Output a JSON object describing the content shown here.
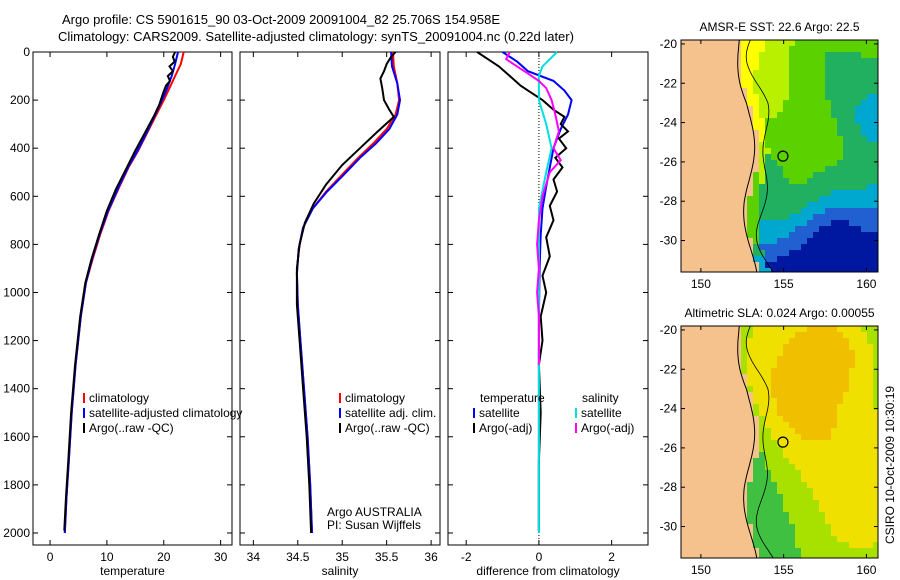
{
  "header": {
    "line1": "Argo profile: CS 5901615_90 03-Oct-2009 20091004_82 25.706S 154.958E",
    "line2": "Climatology: CARS2009. Satellite-adjusted climatology: synTS_20091004.nc (0.22d later)"
  },
  "credit": "CSIRO 10-Oct-2009 10:30:19",
  "chart_data": [
    {
      "type": "line",
      "panel": "temperature",
      "xlabel": "temperature",
      "ylabel": "",
      "xlim": [
        -3,
        32
      ],
      "ylim": [
        2050,
        0
      ],
      "y_reversed": true,
      "xticks": [
        0,
        10,
        20,
        30
      ],
      "yticks": [
        0,
        200,
        400,
        600,
        800,
        1000,
        1200,
        1400,
        1600,
        1800,
        2000
      ],
      "legend_position": "lower-right",
      "series": [
        {
          "name": "climatology",
          "color": "#ff0000",
          "points": [
            [
              23.5,
              0
            ],
            [
              23.0,
              50
            ],
            [
              22.0,
              100
            ],
            [
              21.0,
              150
            ],
            [
              20.0,
              200
            ],
            [
              18.5,
              270
            ],
            [
              17.0,
              340
            ],
            [
              15.5,
              410
            ],
            [
              13.8,
              480
            ],
            [
              12.0,
              570
            ],
            [
              10.3,
              660
            ],
            [
              8.8,
              760
            ],
            [
              7.5,
              860
            ],
            [
              6.3,
              960
            ],
            [
              5.4,
              1100
            ],
            [
              4.5,
              1300
            ],
            [
              3.8,
              1500
            ],
            [
              3.3,
              1700
            ],
            [
              2.9,
              1850
            ],
            [
              2.6,
              2000
            ]
          ]
        },
        {
          "name": "satellite-adjusted climatology",
          "color": "#0000ff",
          "points": [
            [
              22.5,
              0
            ],
            [
              22.0,
              50
            ],
            [
              21.4,
              100
            ],
            [
              20.6,
              150
            ],
            [
              19.7,
              200
            ],
            [
              18.3,
              270
            ],
            [
              16.9,
              340
            ],
            [
              15.4,
              410
            ],
            [
              13.7,
              480
            ],
            [
              11.9,
              570
            ],
            [
              10.2,
              660
            ],
            [
              8.7,
              760
            ],
            [
              7.4,
              860
            ],
            [
              6.3,
              960
            ],
            [
              5.4,
              1100
            ],
            [
              4.5,
              1300
            ],
            [
              3.8,
              1500
            ],
            [
              3.3,
              1700
            ],
            [
              2.9,
              1850
            ],
            [
              2.6,
              2000
            ]
          ]
        },
        {
          "name": "Argo(..raw -QC)",
          "color": "#000000",
          "points": [
            [
              22.0,
              0
            ],
            [
              21.6,
              20
            ],
            [
              21.9,
              40
            ],
            [
              21.0,
              60
            ],
            [
              21.6,
              80
            ],
            [
              20.7,
              100
            ],
            [
              21.1,
              120
            ],
            [
              20.4,
              140
            ],
            [
              19.9,
              170
            ],
            [
              19.2,
              220
            ],
            [
              18.2,
              270
            ],
            [
              16.6,
              340
            ],
            [
              15.0,
              410
            ],
            [
              13.3,
              490
            ],
            [
              11.6,
              570
            ],
            [
              10.0,
              660
            ],
            [
              8.6,
              760
            ],
            [
              7.3,
              860
            ],
            [
              6.2,
              960
            ],
            [
              5.3,
              1100
            ],
            [
              4.4,
              1300
            ],
            [
              3.7,
              1500
            ],
            [
              3.2,
              1700
            ],
            [
              2.8,
              1850
            ],
            [
              2.5,
              1990
            ]
          ]
        }
      ]
    },
    {
      "type": "line",
      "panel": "salinity",
      "xlabel": "salinity",
      "ylabel": "",
      "xlim": [
        33.85,
        36.1
      ],
      "ylim": [
        2050,
        0
      ],
      "y_reversed": true,
      "xticks": [
        34,
        34.5,
        35,
        35.5,
        36
      ],
      "legend_position": "lower-right",
      "annotation": [
        "Argo AUSTRALIA",
        "PI: Susan Wijffels"
      ],
      "series": [
        {
          "name": "climatology",
          "color": "#ff0000",
          "points": [
            [
              35.57,
              0
            ],
            [
              35.58,
              60
            ],
            [
              35.62,
              130
            ],
            [
              35.64,
              200
            ],
            [
              35.6,
              260
            ],
            [
              35.5,
              320
            ],
            [
              35.35,
              380
            ],
            [
              35.18,
              440
            ],
            [
              35.0,
              510
            ],
            [
              34.82,
              580
            ],
            [
              34.67,
              650
            ],
            [
              34.56,
              730
            ],
            [
              34.51,
              820
            ],
            [
              34.49,
              920
            ],
            [
              34.5,
              1050
            ],
            [
              34.53,
              1200
            ],
            [
              34.57,
              1400
            ],
            [
              34.61,
              1600
            ],
            [
              34.64,
              1800
            ],
            [
              34.66,
              2000
            ]
          ]
        },
        {
          "name": "satellite adj. clim.",
          "color": "#0000ff",
          "points": [
            [
              35.55,
              0
            ],
            [
              35.56,
              60
            ],
            [
              35.62,
              130
            ],
            [
              35.65,
              200
            ],
            [
              35.62,
              260
            ],
            [
              35.53,
              320
            ],
            [
              35.38,
              380
            ],
            [
              35.2,
              440
            ],
            [
              35.02,
              510
            ],
            [
              34.83,
              580
            ],
            [
              34.67,
              650
            ],
            [
              34.56,
              730
            ],
            [
              34.51,
              820
            ],
            [
              34.49,
              920
            ],
            [
              34.5,
              1050
            ],
            [
              34.53,
              1200
            ],
            [
              34.57,
              1400
            ],
            [
              34.61,
              1600
            ],
            [
              34.64,
              1800
            ],
            [
              34.66,
              2000
            ]
          ]
        },
        {
          "name": "Argo(..raw -QC)",
          "color": "#000000",
          "points": [
            [
              35.6,
              0
            ],
            [
              35.55,
              20
            ],
            [
              35.5,
              50
            ],
            [
              35.47,
              80
            ],
            [
              35.43,
              110
            ],
            [
              35.45,
              150
            ],
            [
              35.47,
              200
            ],
            [
              35.53,
              240
            ],
            [
              35.58,
              270
            ],
            [
              35.4,
              330
            ],
            [
              35.2,
              400
            ],
            [
              35.0,
              470
            ],
            [
              34.82,
              550
            ],
            [
              34.68,
              630
            ],
            [
              34.58,
              710
            ],
            [
              34.52,
              800
            ],
            [
              34.49,
              900
            ],
            [
              34.49,
              1050
            ],
            [
              34.52,
              1200
            ],
            [
              34.56,
              1400
            ],
            [
              34.6,
              1600
            ],
            [
              34.63,
              1800
            ],
            [
              34.65,
              2000
            ]
          ]
        }
      ]
    },
    {
      "type": "line",
      "panel": "difference",
      "xlabel": "difference from climatology",
      "ylabel": "",
      "xlim": [
        -2.5,
        3.0
      ],
      "ylim": [
        2050,
        0
      ],
      "y_reversed": true,
      "xticks": [
        -2,
        0,
        2
      ],
      "legend_left_header": "temperature",
      "legend_right_header": "salinity",
      "legend_position": "lower-center",
      "series": [
        {
          "name": "satellite",
          "group": "temperature",
          "color": "#0000ff",
          "points": [
            [
              -1.0,
              0
            ],
            [
              -0.6,
              40
            ],
            [
              -0.3,
              80
            ],
            [
              0.4,
              120
            ],
            [
              0.7,
              160
            ],
            [
              0.9,
              200
            ],
            [
              0.8,
              260
            ],
            [
              0.6,
              320
            ],
            [
              0.4,
              400
            ],
            [
              0.3,
              480
            ],
            [
              0.2,
              560
            ],
            [
              0.1,
              650
            ],
            [
              0.05,
              760
            ],
            [
              0.02,
              900
            ],
            [
              0.0,
              1100
            ],
            [
              0.0,
              1400
            ],
            [
              0.0,
              1700
            ],
            [
              0.0,
              2000
            ]
          ]
        },
        {
          "name": "Argo(-adj)",
          "group": "temperature",
          "color": "#000000",
          "points": [
            [
              -1.7,
              0
            ],
            [
              -1.4,
              30
            ],
            [
              -1.1,
              60
            ],
            [
              -0.8,
              100
            ],
            [
              -0.5,
              140
            ],
            [
              -0.2,
              170
            ],
            [
              0.1,
              200
            ],
            [
              0.4,
              240
            ],
            [
              0.7,
              270
            ],
            [
              0.6,
              300
            ],
            [
              0.8,
              330
            ],
            [
              0.55,
              360
            ],
            [
              0.75,
              400
            ],
            [
              0.45,
              440
            ],
            [
              0.65,
              480
            ],
            [
              0.4,
              530
            ],
            [
              0.5,
              580
            ],
            [
              0.3,
              640
            ],
            [
              0.4,
              700
            ],
            [
              0.2,
              770
            ],
            [
              0.3,
              850
            ],
            [
              0.1,
              930
            ],
            [
              0.2,
              1000
            ],
            [
              0.05,
              1100
            ],
            [
              0.1,
              1200
            ],
            [
              0.0,
              1300
            ],
            [
              0.05,
              1500
            ],
            [
              0.0,
              1700
            ],
            [
              0.0,
              1850
            ],
            [
              0.0,
              1990
            ]
          ]
        },
        {
          "name": "satellite",
          "group": "salinity",
          "color": "#00e0e0",
          "points": [
            [
              0.5,
              0
            ],
            [
              0.3,
              30
            ],
            [
              0.1,
              60
            ],
            [
              0.0,
              100
            ],
            [
              0.0,
              200
            ],
            [
              0.2,
              300
            ],
            [
              0.35,
              400
            ],
            [
              0.2,
              500
            ],
            [
              0.0,
              650
            ],
            [
              0.0,
              900
            ],
            [
              0.0,
              1200
            ],
            [
              0.0,
              1600
            ],
            [
              0.0,
              2000
            ]
          ]
        },
        {
          "name": "Argo(-adj)",
          "group": "salinity",
          "color": "#ff00ff",
          "points": [
            [
              -0.8,
              0
            ],
            [
              -0.9,
              30
            ],
            [
              -0.6,
              60
            ],
            [
              -0.3,
              90
            ],
            [
              0.0,
              120
            ],
            [
              0.2,
              150
            ],
            [
              0.35,
              200
            ],
            [
              0.45,
              260
            ],
            [
              0.55,
              330
            ],
            [
              0.4,
              400
            ],
            [
              0.6,
              450
            ],
            [
              0.3,
              500
            ],
            [
              0.1,
              600
            ],
            [
              0.0,
              700
            ],
            [
              -0.05,
              800
            ],
            [
              0.0,
              900
            ],
            [
              -0.05,
              1000
            ],
            [
              0.0,
              1100
            ],
            [
              0.0,
              1300
            ]
          ]
        }
      ]
    },
    {
      "type": "heatmap",
      "panel": "map-sst",
      "title": "AMSR-E SST: 22.6  Argo: 22.5",
      "xticks": [
        150,
        155,
        160
      ],
      "yticks": [
        -20,
        -22,
        -24,
        -26,
        -28,
        -30
      ],
      "xlim": [
        148.8,
        160.7
      ],
      "ylim": [
        -31.6,
        -19.8
      ],
      "float_position": [
        154.958,
        -25.706
      ]
    },
    {
      "type": "heatmap",
      "panel": "map-sla",
      "title": "Altimetric SLA: 0.024  Argo: 0.00055",
      "xticks": [
        150,
        155,
        160
      ],
      "yticks": [
        -20,
        -22,
        -24,
        -26,
        -28,
        -30
      ],
      "xlim": [
        148.8,
        160.7
      ],
      "ylim": [
        -31.6,
        -19.8
      ],
      "float_position": [
        154.958,
        -25.706
      ]
    }
  ]
}
